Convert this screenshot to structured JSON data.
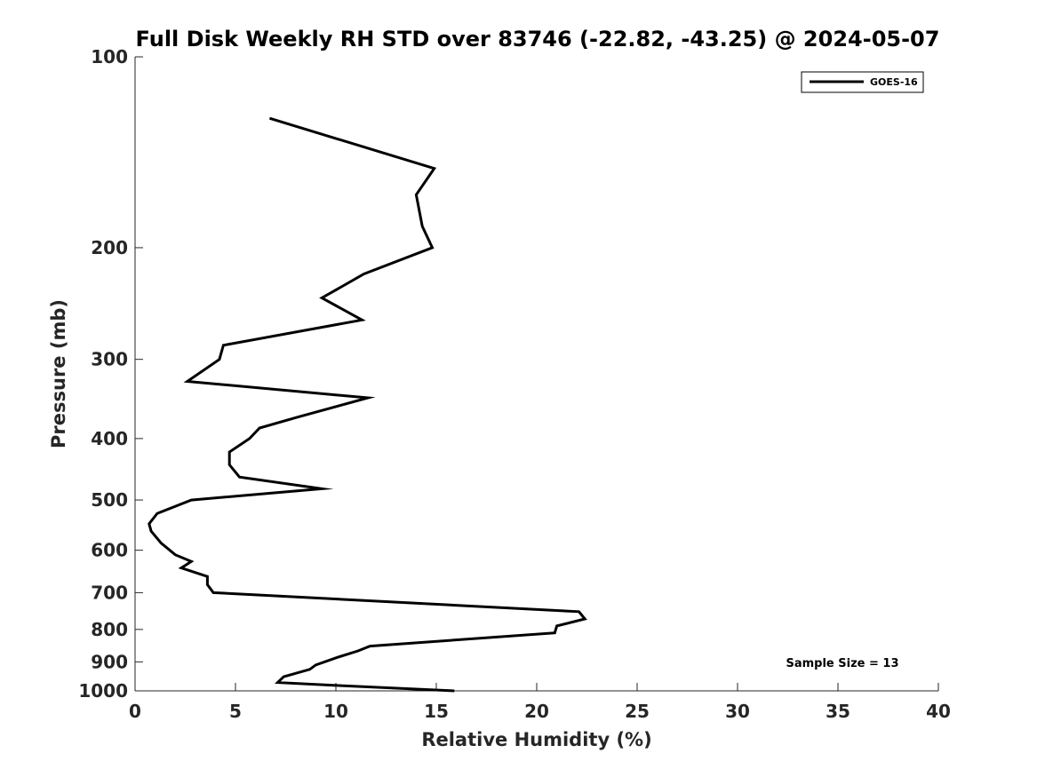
{
  "chart_data": {
    "type": "line",
    "title": "Full Disk Weekly RH STD over 83746 (-22.82, -43.25) @ 2024-05-07",
    "xlabel": "Relative Humidity (%)",
    "ylabel": "Pressure (mb)",
    "xlim": [
      0,
      40
    ],
    "ylim": [
      100,
      1000
    ],
    "yscale": "log",
    "y_reversed": true,
    "grid": false,
    "x_ticks": [
      0,
      5,
      10,
      15,
      20,
      25,
      30,
      35,
      40
    ],
    "y_ticks": [
      100,
      200,
      300,
      400,
      500,
      600,
      700,
      800,
      900,
      1000
    ],
    "legend_position": "top-right",
    "series": [
      {
        "name": "GOES-16",
        "color": "#000000",
        "points": [
          [
            6.7,
            125
          ],
          [
            14.9,
            150
          ],
          [
            14.0,
            165
          ],
          [
            14.3,
            185
          ],
          [
            14.8,
            200
          ],
          [
            11.4,
            220
          ],
          [
            9.3,
            240
          ],
          [
            11.3,
            260
          ],
          [
            4.4,
            285
          ],
          [
            4.2,
            300
          ],
          [
            2.6,
            325
          ],
          [
            11.6,
            345
          ],
          [
            8.1,
            370
          ],
          [
            6.2,
            385
          ],
          [
            5.7,
            400
          ],
          [
            4.7,
            420
          ],
          [
            4.7,
            440
          ],
          [
            5.2,
            460
          ],
          [
            9.3,
            480
          ],
          [
            2.8,
            500
          ],
          [
            1.1,
            525
          ],
          [
            0.7,
            545
          ],
          [
            0.8,
            560
          ],
          [
            1.3,
            585
          ],
          [
            2.0,
            610
          ],
          [
            2.8,
            625
          ],
          [
            2.3,
            640
          ],
          [
            3.6,
            660
          ],
          [
            3.6,
            680
          ],
          [
            3.9,
            700
          ],
          [
            22.1,
            750
          ],
          [
            22.4,
            770
          ],
          [
            21.0,
            790
          ],
          [
            20.9,
            810
          ],
          [
            11.7,
            850
          ],
          [
            11.1,
            865
          ],
          [
            10.1,
            885
          ],
          [
            9.0,
            910
          ],
          [
            8.7,
            925
          ],
          [
            7.4,
            950
          ],
          [
            7.1,
            970
          ],
          [
            9.9,
            980
          ],
          [
            15.9,
            1000
          ]
        ]
      }
    ],
    "annotations": [
      "Sample Size = 13"
    ]
  }
}
